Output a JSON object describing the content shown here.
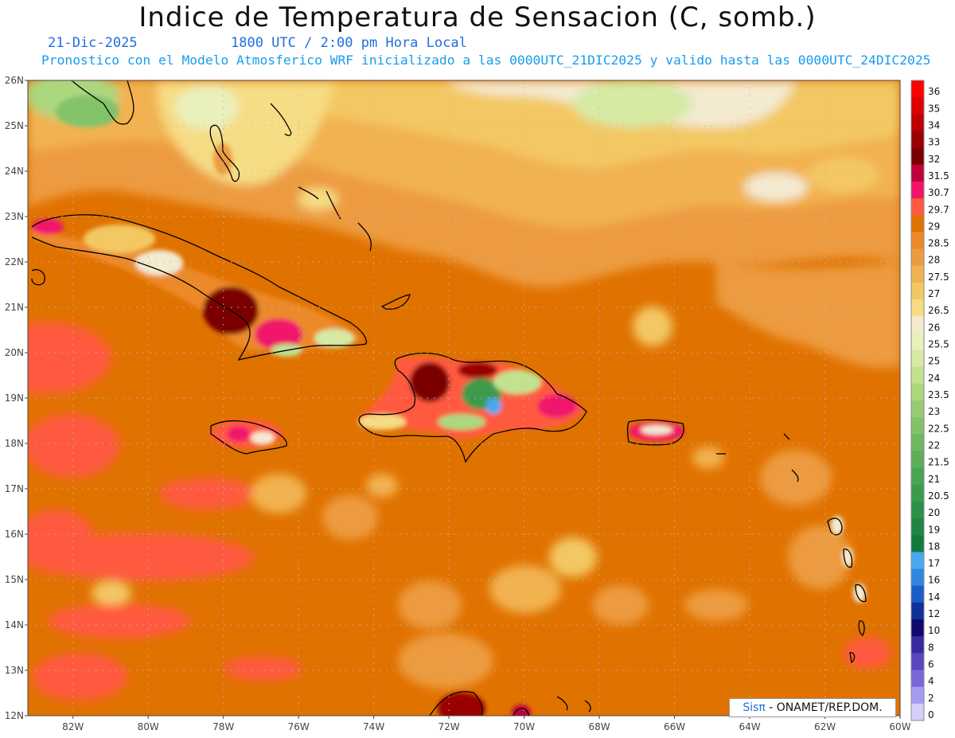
{
  "header": {
    "title": "Indice de Temperatura de Sensacion (C, somb.)",
    "date": "21-Dic-2025",
    "time": "1800 UTC / 2:00 pm Hora Local",
    "model_info": "Pronostico con el Modelo Atmosferico WRF inicializado a las 0000UTC_21DIC2025 y valido hasta las  0000UTC_24DIC2025"
  },
  "map": {
    "lat_labels": [
      "26N",
      "25N",
      "24N",
      "23N",
      "22N",
      "21N",
      "20N",
      "19N",
      "18N",
      "17N",
      "16N",
      "15N",
      "14N",
      "13N",
      "12N"
    ],
    "lon_labels": [
      "82W",
      "80W",
      "78W",
      "76W",
      "74W",
      "72W",
      "70W",
      "68W",
      "66W",
      "64W",
      "62W",
      "60W"
    ],
    "lat_range": [
      12,
      26
    ],
    "lon_range": [
      -83.2,
      -60
    ],
    "grid": "dotted"
  },
  "legend": {
    "levels": [
      "36",
      "35",
      "34",
      "33",
      "32",
      "31.5",
      "30.7",
      "29.7",
      "29",
      "28.5",
      "28",
      "27.5",
      "27",
      "26.5",
      "26",
      "25.5",
      "25",
      "24",
      "23.5",
      "23",
      "22.5",
      "22",
      "21.5",
      "21",
      "20.5",
      "20",
      "19",
      "18",
      "17",
      "16",
      "14",
      "12",
      "10",
      "8",
      "6",
      "4",
      "2",
      "0"
    ],
    "colors": [
      "#ff0000",
      "#e00000",
      "#c00000",
      "#9a0000",
      "#7a0000",
      "#c0003a",
      "#f0146a",
      "#ff5a40",
      "#e07200",
      "#ec8a2a",
      "#ed9b3f",
      "#f2b250",
      "#f3c864",
      "#f6dc84",
      "#f3ead0",
      "#e9f0bc",
      "#d6eaa4",
      "#c2e290",
      "#acd77f",
      "#98cc74",
      "#84c26a",
      "#6fb860",
      "#5cae58",
      "#4aa452",
      "#3c9a4c",
      "#2c9048",
      "#1e8544",
      "#127a3f",
      "#4aa8f0",
      "#2f86e0",
      "#1a5cc8",
      "#10309a",
      "#100a70",
      "#3a2aa0",
      "#5a46c0",
      "#7a68d8",
      "#a59cf0",
      "#d4d0fa"
    ]
  },
  "credit": {
    "logo": "Sisπ",
    "text": " - ONAMET/REP.DOM."
  }
}
